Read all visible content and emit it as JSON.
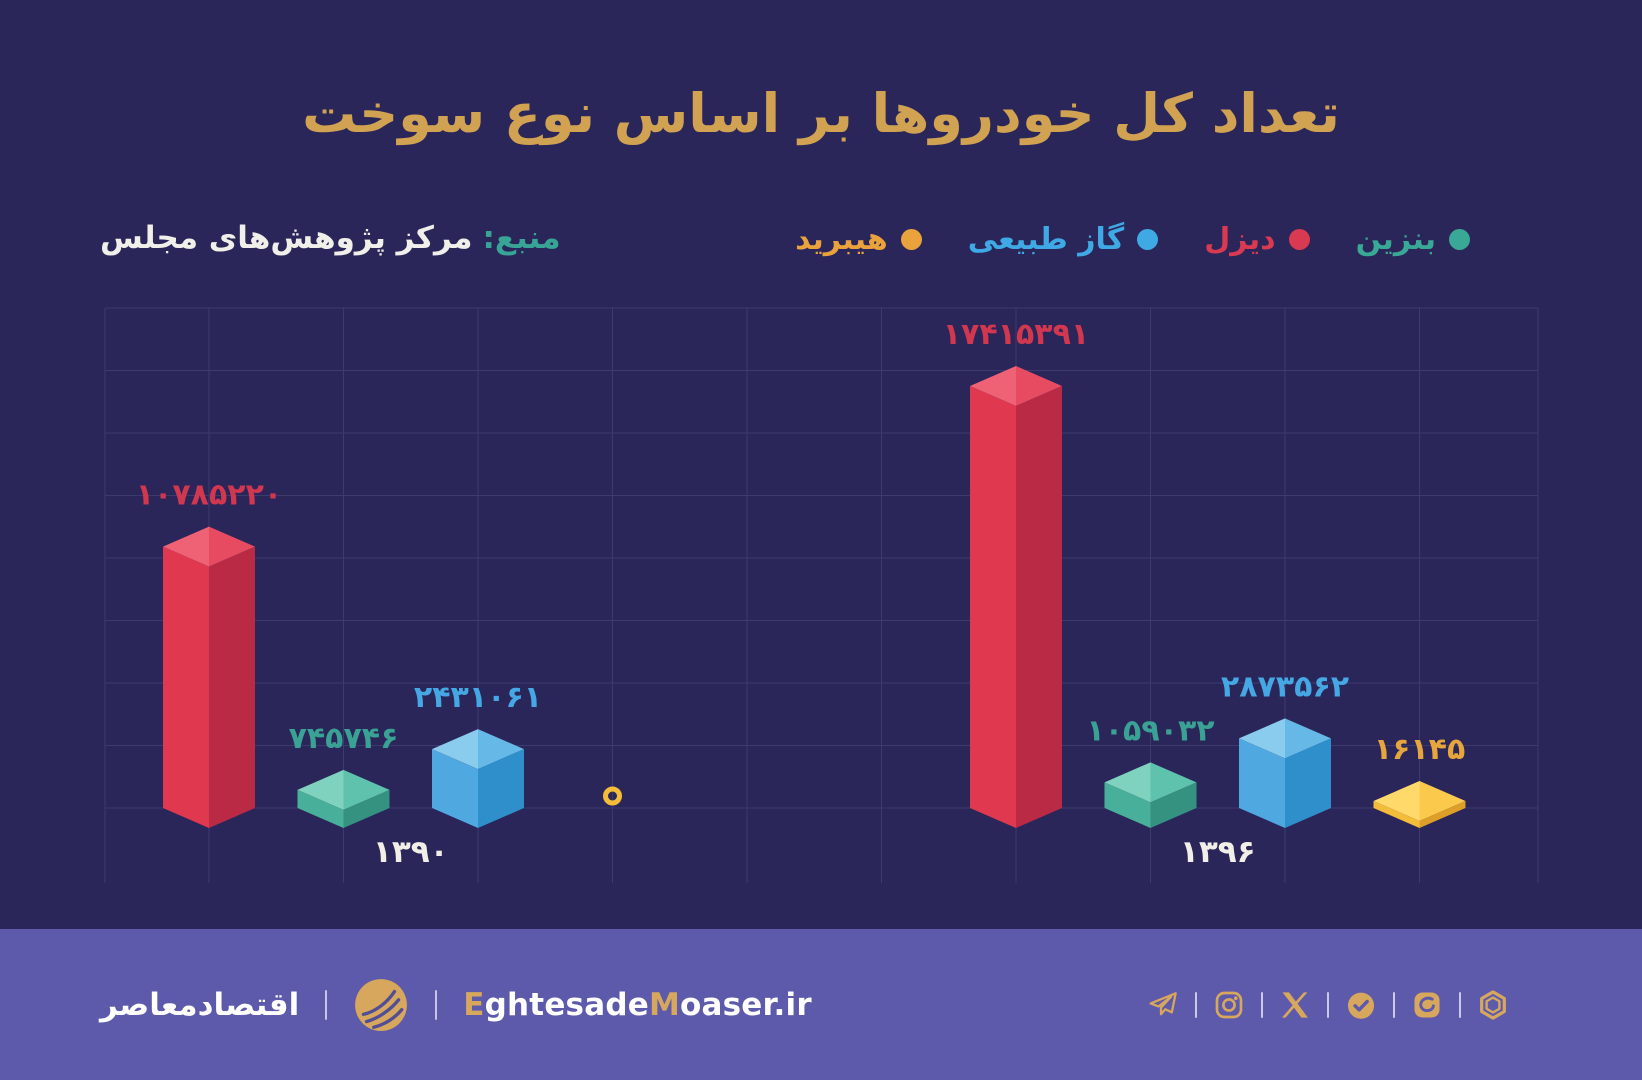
{
  "title": "تعداد کل خودروها بر اساس نوع سوخت",
  "source": {
    "label": "منبع:",
    "text": "مرکز پژوهش‌های مجلس"
  },
  "legend": [
    {
      "name": "بنزین",
      "color": "#3aa896"
    },
    {
      "name": "دیزل",
      "color": "#d93a52"
    },
    {
      "name": "گاز طبیعی",
      "color": "#3fa9e5"
    },
    {
      "name": "هیبرید",
      "color": "#eaa33c"
    }
  ],
  "palette": {
    "background": "#2a2659",
    "grid": "#3d3a6e",
    "title_gold": "#d0a251",
    "text_white": "#f1efe9",
    "footer_band": "#5d59ab",
    "footer_gold": "#d6a75c"
  },
  "chart_data": {
    "type": "bar",
    "style": "3d-isometric-grouped",
    "title": "تعداد کل خودروها بر اساس نوع سوخت",
    "categories": [
      "۱۳۹۰",
      "۱۳۹۶"
    ],
    "series": [
      {
        "name": "دیزل",
        "values": [
          10785220,
          17415391
        ],
        "labels": [
          "۱۰۷۸۵۲۲۰",
          "۱۷۴۱۵۳۹۱"
        ],
        "label_color": "#d23750",
        "faces": {
          "light": "#ef6276",
          "mid": "#e64b61",
          "main": "#e0394f",
          "dark": "#bb2a45"
        }
      },
      {
        "name": "بنزین",
        "values": [
          745746,
          1059032
        ],
        "labels": [
          "۷۴۵۷۴۶",
          "۱۰۵۹۰۳۲"
        ],
        "label_color": "#3aa294",
        "faces": {
          "light": "#7fd2bd",
          "mid": "#5ec2ac",
          "main": "#48b09a",
          "dark": "#359180"
        }
      },
      {
        "name": "گاز طبیعی",
        "values": [
          2431061,
          2873562
        ],
        "labels": [
          "۲۴۳۱۰۶۱",
          "۲۸۷۳۵۶۲"
        ],
        "label_color": "#45a7e3",
        "faces": {
          "light": "#8accee",
          "mid": "#66b8e7",
          "main": "#4fa9e0",
          "dark": "#2f8fcb"
        }
      },
      {
        "name": "هیبرید",
        "values": [
          0,
          16145
        ],
        "labels": [
          "۰",
          "۱۶۱۴۵"
        ],
        "label_color": "#e7a53d",
        "faces": {
          "light": "#ffd969",
          "mid": "#fbca4c",
          "main": "#f3bc39",
          "dark": "#dd9f28"
        }
      }
    ],
    "ylim": [
      0,
      17415391
    ],
    "grid": true,
    "legend_position": "top-right",
    "value_labels": true,
    "zero_marker": "ring",
    "x_axis_label_color": "#f2efe9"
  },
  "footer": {
    "brand_fa": "اقتصادمعاصر",
    "site_parts": [
      {
        "text": "E",
        "gold": true
      },
      {
        "text": "ghtesade",
        "gold": false
      },
      {
        "text": "M",
        "gold": true
      },
      {
        "text": "oaser.ir",
        "gold": false
      }
    ],
    "social_icons": [
      "telegram-icon",
      "instagram-icon",
      "x-icon",
      "bale-icon",
      "eitaa-icon",
      "rubika-icon"
    ]
  }
}
